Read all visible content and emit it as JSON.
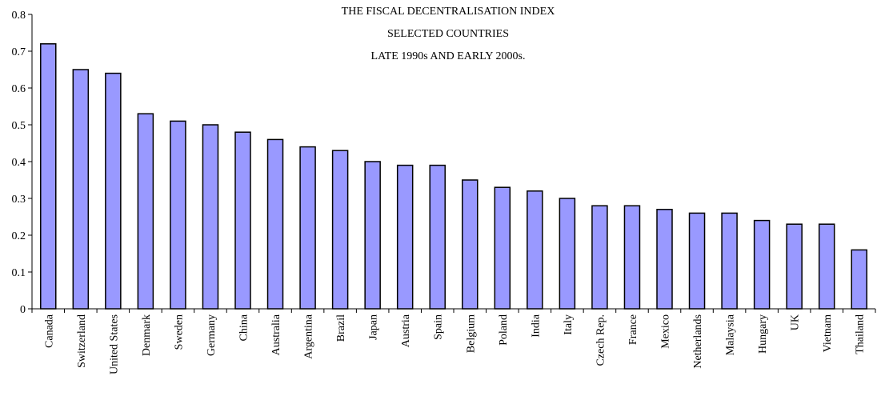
{
  "chart_data": {
    "type": "bar",
    "title": [
      "THE FISCAL DECENTRALISATION INDEX",
      "SELECTED COUNTRIES",
      "LATE 1990s AND EARLY 2000s."
    ],
    "categories": [
      "Canada",
      "Switzerland",
      "United States",
      "Denmark",
      "Sweden",
      "Germany",
      "China",
      "Australia",
      "Argentina",
      "Brazil",
      "Japan",
      "Austria",
      "Spain",
      "Belgium",
      "Poland",
      "India",
      "Italy",
      "Czech Rep.",
      "France",
      "Mexico",
      "Netherlands",
      "Malaysia",
      "Hungary",
      "UK",
      "Vietnam",
      "Thailand"
    ],
    "values": [
      0.72,
      0.65,
      0.64,
      0.53,
      0.51,
      0.5,
      0.48,
      0.46,
      0.44,
      0.43,
      0.4,
      0.39,
      0.39,
      0.35,
      0.33,
      0.32,
      0.3,
      0.28,
      0.28,
      0.27,
      0.26,
      0.26,
      0.24,
      0.23,
      0.23,
      0.16
    ],
    "color": "#9999ff",
    "ylim": [
      0,
      0.8
    ],
    "yticks": [
      0,
      0.1,
      0.2,
      0.3,
      0.4,
      0.5,
      0.6,
      0.7,
      0.8
    ],
    "grid": false
  }
}
